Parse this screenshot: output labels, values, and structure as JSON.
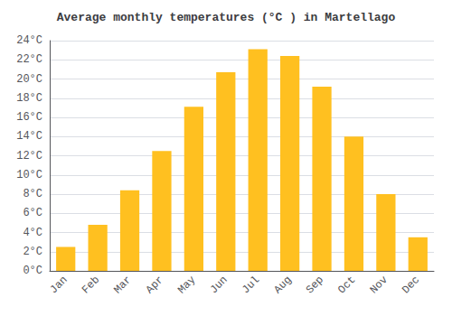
{
  "chart_data": {
    "type": "bar",
    "title": "Average monthly temperatures (°C ) in Martellago",
    "categories": [
      "Jan",
      "Feb",
      "Mar",
      "Apr",
      "May",
      "Jun",
      "Jul",
      "Aug",
      "Sep",
      "Oct",
      "Nov",
      "Dec"
    ],
    "values": [
      2.5,
      4.8,
      8.4,
      12.5,
      17.1,
      20.7,
      23.1,
      22.4,
      19.2,
      14.0,
      8.0,
      3.5
    ],
    "color": "#FFC020",
    "ylim": [
      0,
      24
    ],
    "yticks": [
      {
        "value": 0,
        "label": "0°C"
      },
      {
        "value": 2,
        "label": "2°C"
      },
      {
        "value": 4,
        "label": "4°C"
      },
      {
        "value": 6,
        "label": "6°C"
      },
      {
        "value": 8,
        "label": "8°C"
      },
      {
        "value": 10,
        "label": "10°C"
      },
      {
        "value": 12,
        "label": "12°C"
      },
      {
        "value": 14,
        "label": "14°C"
      },
      {
        "value": 16,
        "label": "16°C"
      },
      {
        "value": 18,
        "label": "18°C"
      },
      {
        "value": 20,
        "label": "20°C"
      },
      {
        "value": 22,
        "label": "22°C"
      },
      {
        "value": 24,
        "label": "24°C"
      }
    ],
    "grid": true
  }
}
